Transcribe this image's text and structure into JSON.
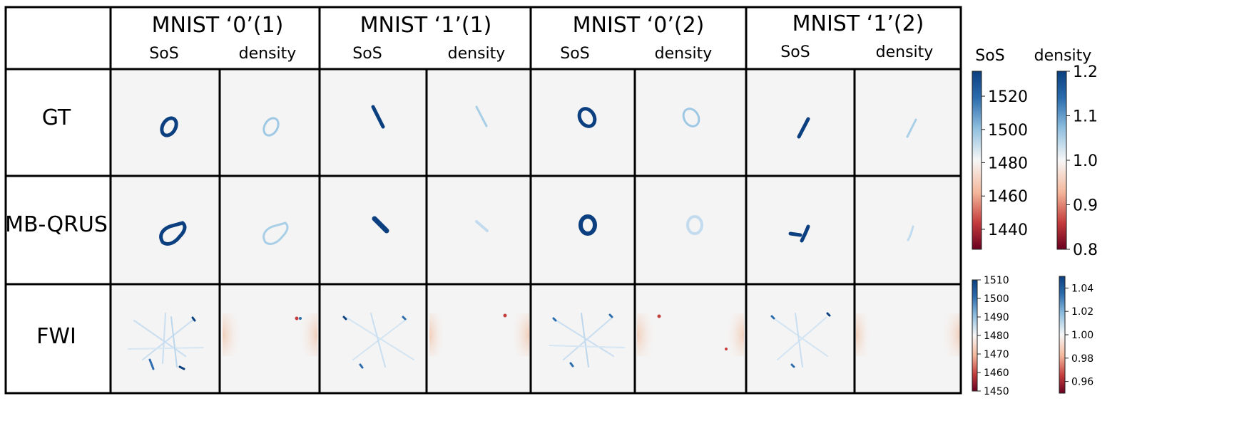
{
  "column_groups": [
    {
      "title": "MNIST ‘0’(1)",
      "sub": [
        "SoS",
        "density"
      ]
    },
    {
      "title": "MNIST ‘1’(1)",
      "sub": [
        "SoS",
        "density"
      ]
    },
    {
      "title": "MNIST ‘0’(2)",
      "sub": [
        "SoS",
        "density"
      ]
    },
    {
      "title": "MNIST ‘1’(2)",
      "sub": [
        "SoS",
        "density"
      ]
    }
  ],
  "rows": [
    "GT",
    "MB-QRUS",
    "FWI"
  ],
  "colorbars": {
    "titles": {
      "sos": "SoS",
      "density": "density"
    },
    "top_sos": {
      "ticks": [
        "1520",
        "1500",
        "1480",
        "1460",
        "1440"
      ],
      "range": [
        1428,
        1535
      ]
    },
    "top_density": {
      "ticks": [
        "1.2",
        "1.1",
        "1.0",
        "0.9",
        "0.8"
      ],
      "range": [
        0.8,
        1.2
      ]
    },
    "bottom_sos": {
      "ticks": [
        "1510",
        "1500",
        "1490",
        "1480",
        "1470",
        "1460",
        "1450"
      ],
      "range": [
        1450,
        1510
      ]
    },
    "bottom_density": {
      "ticks": [
        "1.04",
        "1.02",
        "1.00",
        "0.98",
        "0.96"
      ],
      "range": [
        0.95,
        1.05
      ]
    }
  },
  "colors": {
    "deep_blue": "#0b3f7f",
    "light_blue": "#9ec8e4",
    "background": "#f4f4f4",
    "deep_red": "#780018"
  }
}
